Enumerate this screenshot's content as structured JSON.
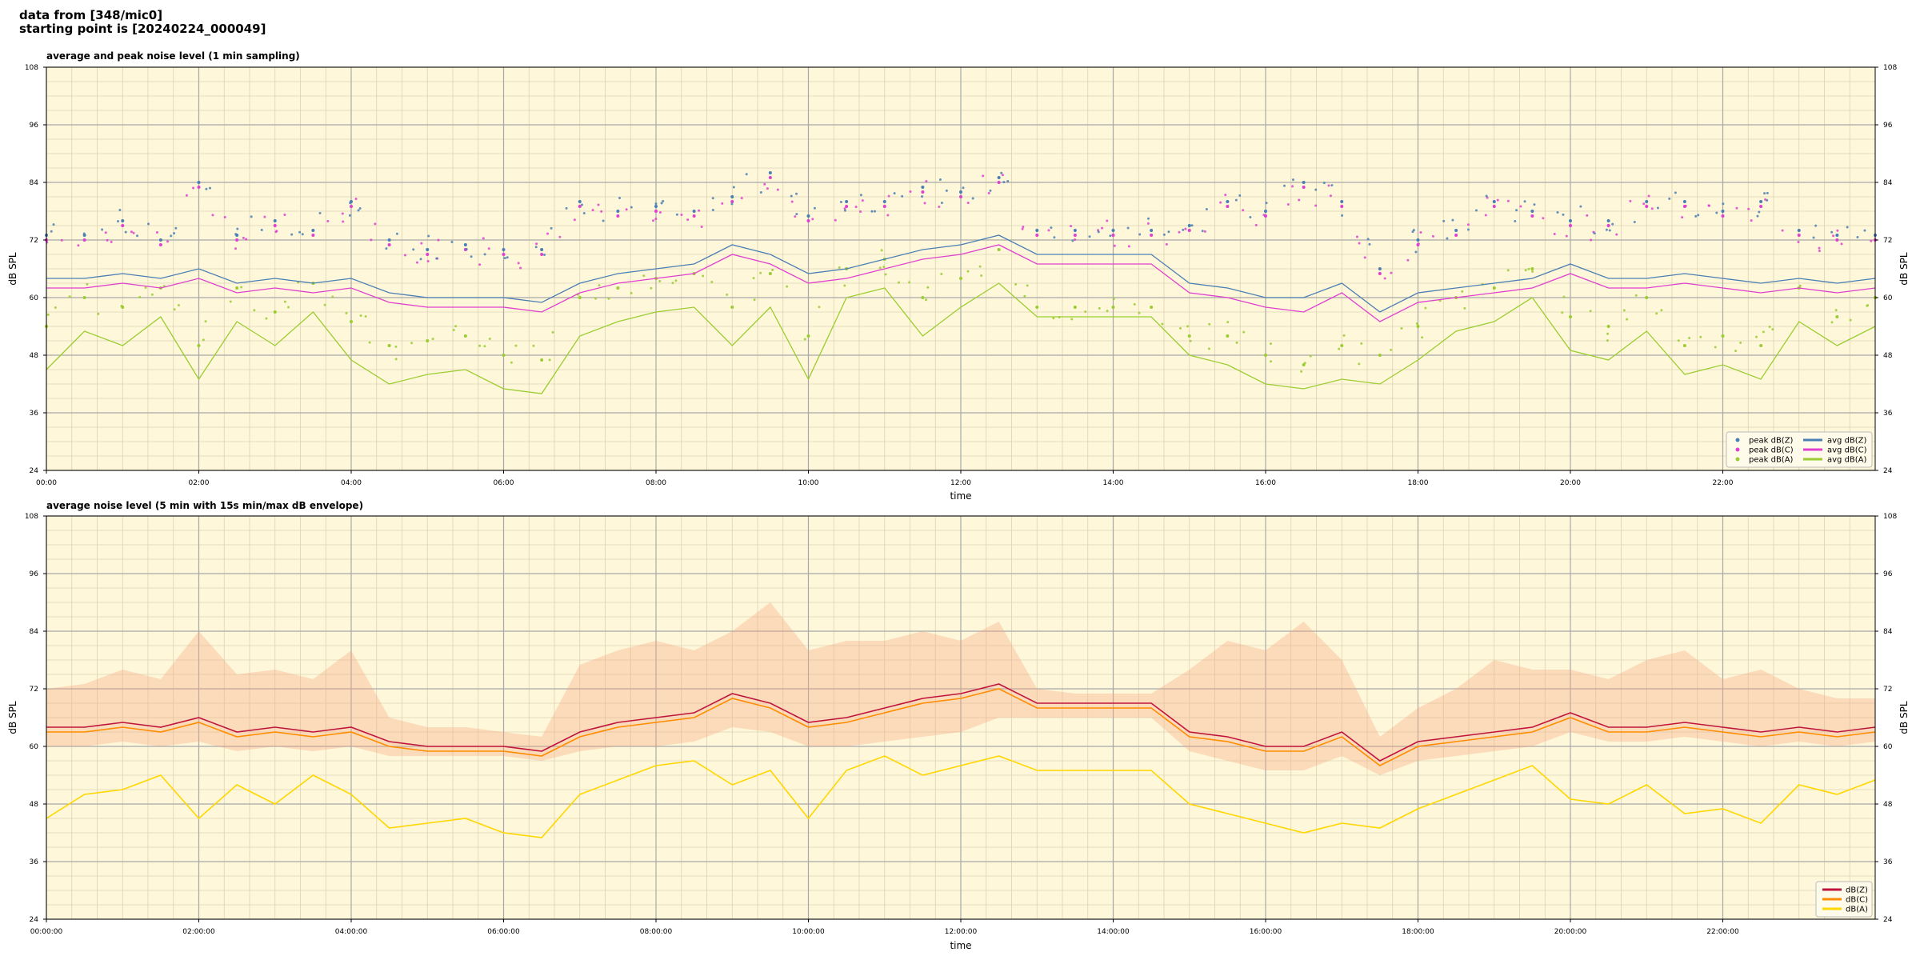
{
  "figure": {
    "title_line1": "data from [348/mic0]",
    "title_line2": "starting point is [20240224_000049]"
  },
  "colors": {
    "panel_bg": "#fff7d9",
    "grid_major": "#a8a8a8",
    "grid_minor": "#dcd3b4",
    "dbz": "#4a7fb5",
    "dbc": "#e040d0",
    "dba": "#9acd32",
    "dbz_line2": "#c0143c",
    "dbc_line2": "#ff8c00",
    "dba_line2": "#ffd700",
    "envelope": "#f4a582"
  },
  "chart_data": [
    {
      "type": "line",
      "title": "average and peak noise level (1 min sampling)",
      "xlabel": "time",
      "ylabel": "dB SPL",
      "ylim": [
        24,
        108
      ],
      "yticks": [
        "24",
        "36",
        "48",
        "60",
        "72",
        "84",
        "96",
        "108"
      ],
      "xlim_hours": [
        0,
        24
      ],
      "xticks": [
        "00:00",
        "02:00",
        "04:00",
        "06:00",
        "08:00",
        "10:00",
        "12:00",
        "14:00",
        "16:00",
        "18:00",
        "20:00",
        "22:00"
      ],
      "grid": true,
      "legend_position": "lower-right",
      "legend": [
        "peak dB(Z)",
        "peak dB(C)",
        "peak dB(A)",
        "avg dB(Z)",
        "avg dB(C)",
        "avg dB(A)"
      ],
      "x_hours": [
        0,
        0.5,
        1.0,
        1.5,
        2.0,
        2.5,
        3.0,
        3.5,
        4.0,
        4.5,
        5.0,
        5.5,
        6.0,
        6.5,
        7.0,
        7.5,
        8.0,
        8.5,
        9.0,
        9.5,
        10.0,
        10.5,
        11.0,
        11.5,
        12.0,
        12.5,
        13.0,
        13.5,
        14.0,
        14.5,
        15.0,
        15.5,
        16.0,
        16.5,
        17.0,
        17.5,
        18.0,
        18.5,
        19.0,
        19.5,
        20.0,
        20.5,
        21.0,
        21.5,
        22.0,
        22.5,
        23.0,
        23.5,
        24.0
      ],
      "series": [
        {
          "name": "avg dB(Z)",
          "values": [
            64,
            64,
            65,
            64,
            66,
            63,
            64,
            63,
            64,
            61,
            60,
            60,
            60,
            59,
            63,
            65,
            66,
            67,
            71,
            69,
            65,
            66,
            68,
            70,
            71,
            73,
            69,
            69,
            69,
            69,
            63,
            62,
            60,
            60,
            63,
            57,
            61,
            62,
            63,
            64,
            67,
            64,
            64,
            65,
            64,
            63,
            64,
            63,
            64
          ]
        },
        {
          "name": "avg dB(C)",
          "values": [
            62,
            62,
            63,
            62,
            64,
            61,
            62,
            61,
            62,
            59,
            58,
            58,
            58,
            57,
            61,
            63,
            64,
            65,
            69,
            67,
            63,
            64,
            66,
            68,
            69,
            71,
            67,
            67,
            67,
            67,
            61,
            60,
            58,
            57,
            61,
            55,
            59,
            60,
            61,
            62,
            65,
            62,
            62,
            63,
            62,
            61,
            62,
            61,
            62
          ]
        },
        {
          "name": "avg dB(A)",
          "values": [
            45,
            53,
            50,
            56,
            43,
            55,
            50,
            57,
            47,
            42,
            44,
            45,
            41,
            40,
            52,
            55,
            57,
            58,
            50,
            58,
            43,
            60,
            62,
            52,
            58,
            63,
            56,
            56,
            56,
            56,
            48,
            46,
            42,
            41,
            43,
            42,
            47,
            53,
            55,
            60,
            49,
            47,
            53,
            44,
            46,
            43,
            55,
            50,
            54
          ]
        },
        {
          "name": "peak dB(Z)",
          "values": [
            73,
            73,
            76,
            72,
            84,
            73,
            76,
            74,
            80,
            72,
            70,
            71,
            70,
            70,
            80,
            78,
            79,
            78,
            81,
            86,
            77,
            80,
            80,
            83,
            82,
            85,
            74,
            74,
            74,
            74,
            75,
            80,
            78,
            84,
            80,
            66,
            72,
            74,
            80,
            78,
            76,
            76,
            80,
            80,
            78,
            80,
            74,
            73,
            73
          ]
        },
        {
          "name": "peak dB(C)",
          "values": [
            72,
            72,
            75,
            71,
            83,
            72,
            75,
            73,
            79,
            71,
            69,
            70,
            69,
            69,
            79,
            77,
            78,
            77,
            80,
            85,
            76,
            79,
            79,
            82,
            81,
            84,
            73,
            73,
            73,
            73,
            74,
            79,
            77,
            83,
            79,
            65,
            71,
            73,
            79,
            77,
            75,
            75,
            79,
            79,
            77,
            79,
            73,
            72,
            72
          ]
        },
        {
          "name": "peak dB(A)",
          "values": [
            54,
            60,
            58,
            62,
            50,
            62,
            57,
            63,
            55,
            50,
            51,
            52,
            48,
            47,
            60,
            62,
            64,
            65,
            58,
            65,
            52,
            66,
            68,
            60,
            64,
            70,
            58,
            58,
            58,
            58,
            52,
            52,
            48,
            46,
            50,
            48,
            54,
            60,
            62,
            66,
            56,
            54,
            60,
            50,
            52,
            50,
            62,
            56,
            60
          ]
        }
      ]
    },
    {
      "type": "line",
      "title": "average noise level (5 min with 15s min/max dB envelope)",
      "xlabel": "time",
      "ylabel": "dB SPL",
      "ylim": [
        24,
        108
      ],
      "yticks": [
        "24",
        "36",
        "48",
        "60",
        "72",
        "84",
        "96",
        "108"
      ],
      "xlim_hours": [
        0,
        24
      ],
      "xticks": [
        "00:00:00",
        "02:00:00",
        "04:00:00",
        "06:00:00",
        "08:00:00",
        "10:00:00",
        "12:00:00",
        "14:00:00",
        "16:00:00",
        "18:00:00",
        "20:00:00",
        "22:00:00"
      ],
      "grid": true,
      "legend_position": "lower-right",
      "legend": [
        "dB(Z)",
        "dB(C)",
        "dB(A)"
      ],
      "x_hours": [
        0,
        0.5,
        1.0,
        1.5,
        2.0,
        2.5,
        3.0,
        3.5,
        4.0,
        4.5,
        5.0,
        5.5,
        6.0,
        6.5,
        7.0,
        7.5,
        8.0,
        8.5,
        9.0,
        9.5,
        10.0,
        10.5,
        11.0,
        11.5,
        12.0,
        12.5,
        13.0,
        13.5,
        14.0,
        14.5,
        15.0,
        15.5,
        16.0,
        16.5,
        17.0,
        17.5,
        18.0,
        18.5,
        19.0,
        19.5,
        20.0,
        20.5,
        21.0,
        21.5,
        22.0,
        22.5,
        23.0,
        23.5,
        24.0
      ],
      "series": [
        {
          "name": "dB(Z)",
          "values": [
            64,
            64,
            65,
            64,
            66,
            63,
            64,
            63,
            64,
            61,
            60,
            60,
            60,
            59,
            63,
            65,
            66,
            67,
            71,
            69,
            65,
            66,
            68,
            70,
            71,
            73,
            69,
            69,
            69,
            69,
            63,
            62,
            60,
            60,
            63,
            57,
            61,
            62,
            63,
            64,
            67,
            64,
            64,
            65,
            64,
            63,
            64,
            63,
            64
          ]
        },
        {
          "name": "dB(C)",
          "values": [
            63,
            63,
            64,
            63,
            65,
            62,
            63,
            62,
            63,
            60,
            59,
            59,
            59,
            58,
            62,
            64,
            65,
            66,
            70,
            68,
            64,
            65,
            67,
            69,
            70,
            72,
            68,
            68,
            68,
            68,
            62,
            61,
            59,
            59,
            62,
            56,
            60,
            61,
            62,
            63,
            66,
            63,
            63,
            64,
            63,
            62,
            63,
            62,
            63
          ]
        },
        {
          "name": "dB(A)",
          "values": [
            45,
            50,
            51,
            54,
            45,
            52,
            48,
            54,
            50,
            43,
            44,
            45,
            42,
            41,
            50,
            53,
            56,
            57,
            52,
            55,
            45,
            55,
            58,
            54,
            56,
            58,
            55,
            55,
            55,
            55,
            48,
            46,
            44,
            42,
            44,
            43,
            47,
            50,
            53,
            56,
            49,
            48,
            52,
            46,
            47,
            44,
            52,
            50,
            53
          ]
        },
        {
          "name": "",
          "values": [
            60,
            60,
            61,
            60,
            61,
            59,
            60,
            59,
            60,
            58,
            58,
            58,
            58,
            57,
            59,
            60,
            60,
            61,
            64,
            63,
            60,
            60,
            61,
            62,
            63,
            66,
            66,
            66,
            66,
            66,
            59,
            57,
            55,
            55,
            58,
            54,
            57,
            58,
            59,
            60,
            63,
            61,
            61,
            62,
            61,
            60,
            61,
            60,
            61
          ]
        },
        {
          "name": "",
          "values": [
            72,
            73,
            76,
            74,
            84,
            75,
            76,
            74,
            80,
            66,
            64,
            64,
            63,
            62,
            77,
            80,
            82,
            80,
            84,
            90,
            80,
            82,
            82,
            84,
            82,
            86,
            72,
            71,
            71,
            71,
            76,
            82,
            80,
            86,
            78,
            62,
            68,
            72,
            78,
            76,
            76,
            74,
            78,
            80,
            74,
            76,
            72,
            70,
            70
          ]
        }
      ]
    }
  ]
}
